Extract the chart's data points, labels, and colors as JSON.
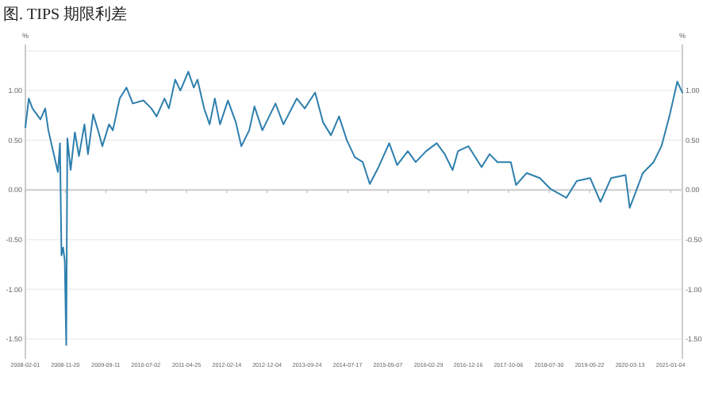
{
  "chart_data": {
    "type": "line",
    "title": "图. TIPS 期限利差",
    "ylabel": "%",
    "y2label": "%",
    "x": [
      "2008-02-01",
      "2008-02-26",
      "2008-03-24",
      "2008-05-21",
      "2008-06-25",
      "2008-07-18",
      "2008-08-22",
      "2008-09-26",
      "2008-10-11",
      "2008-10-22",
      "2008-11-03",
      "2008-11-15",
      "2008-11-26",
      "2008-12-04",
      "2008-12-28",
      "2009-01-28",
      "2009-02-27",
      "2009-04-08",
      "2009-05-04",
      "2009-06-11",
      "2009-07-21",
      "2009-08-17",
      "2009-10-05",
      "2009-11-02",
      "2009-12-22",
      "2010-02-10",
      "2010-03-28",
      "2010-06-14",
      "2010-08-11",
      "2010-09-18",
      "2010-11-15",
      "2010-12-17",
      "2011-02-01",
      "2011-03-11",
      "2011-05-08",
      "2011-06-17",
      "2011-07-14",
      "2011-09-01",
      "2011-10-11",
      "2011-11-18",
      "2011-12-26",
      "2012-02-22",
      "2012-04-20",
      "2012-05-30",
      "2012-07-27",
      "2012-09-03",
      "2012-10-31",
      "2013-02-04",
      "2013-04-03",
      "2013-07-10",
      "2013-09-06",
      "2013-11-21",
      "2014-01-18",
      "2014-03-17",
      "2014-05-15",
      "2014-07-11",
      "2014-09-07",
      "2014-11-04",
      "2014-12-26",
      "2015-02-28",
      "2015-05-17",
      "2015-07-14",
      "2015-09-30",
      "2015-11-27",
      "2016-02-11",
      "2016-04-29",
      "2016-06-26",
      "2016-08-23",
      "2016-10-01",
      "2016-12-17",
      "2017-03-23",
      "2017-05-20",
      "2017-07-17",
      "2017-10-23",
      "2017-11-30",
      "2018-02-16",
      "2018-05-23",
      "2018-08-09",
      "2018-12-03",
      "2019-02-17",
      "2019-05-26",
      "2019-08-10",
      "2019-10-27",
      "2020-02-09",
      "2020-03-11",
      "2020-06-15",
      "2020-09-01",
      "2020-10-29",
      "2020-12-26",
      "2021-02-22",
      "2021-03-31"
    ],
    "series": [
      {
        "color": "#2e7fad",
        "values": [
          0.63,
          0.92,
          0.82,
          0.71,
          0.82,
          0.6,
          0.39,
          0.18,
          0.47,
          -0.66,
          -0.58,
          -0.71,
          -1.56,
          0.52,
          0.2,
          0.58,
          0.34,
          0.66,
          0.36,
          0.76,
          0.58,
          0.44,
          0.66,
          0.6,
          0.92,
          1.03,
          0.87,
          0.9,
          0.82,
          0.74,
          0.92,
          0.82,
          1.11,
          1.0,
          1.19,
          1.03,
          1.11,
          0.82,
          0.66,
          0.92,
          0.66,
          0.9,
          0.68,
          0.44,
          0.6,
          0.84,
          0.6,
          0.87,
          0.66,
          0.92,
          0.82,
          0.98,
          0.68,
          0.55,
          0.74,
          0.5,
          0.33,
          0.28,
          0.06,
          0.23,
          0.47,
          0.25,
          0.39,
          0.28,
          0.39,
          0.47,
          0.36,
          0.2,
          0.39,
          0.44,
          0.23,
          0.36,
          0.28,
          0.28,
          0.05,
          0.17,
          0.12,
          0.01,
          -0.08,
          0.09,
          0.12,
          -0.12,
          0.12,
          0.15,
          -0.18,
          0.17,
          0.28,
          0.44,
          0.74,
          1.09,
          0.98
        ]
      }
    ],
    "xlim": [
      "2008-02-01",
      "2021-03-31"
    ],
    "xticks": [
      "2008-02-01",
      "2008-11-20",
      "2009-09-11",
      "2010-07-02",
      "2011-04-25",
      "2012-02-14",
      "2012-12-04",
      "2013-09-24",
      "2014-07-17",
      "2015-05-07",
      "2016-02-29",
      "2016-12-16",
      "2017-10-06",
      "2018-07-30",
      "2019-05-22",
      "2020-03-13",
      "2021-01-04"
    ],
    "ylim": [
      -1.7,
      1.4
    ],
    "yticks": [
      {
        "value": -1.5,
        "label": "-1.50"
      },
      {
        "value": -1,
        "label": "-1.00"
      },
      {
        "value": -0.5,
        "label": "-0.50"
      },
      {
        "value": 0,
        "label": "0.00"
      },
      {
        "value": 0.5,
        "label": "0.50"
      },
      {
        "value": 1,
        "label": "1.00"
      }
    ],
    "y2lim": [
      -1.7,
      1.4
    ],
    "y2ticks": [
      {
        "value": -1.5,
        "label": "-1.50"
      },
      {
        "value": -1,
        "label": "-1.00"
      },
      {
        "value": -0.5,
        "label": "-0.50"
      },
      {
        "value": 0,
        "label": "0.00"
      },
      {
        "value": 0.5,
        "label": "0.50"
      },
      {
        "value": 1,
        "label": "1.00"
      }
    ],
    "grid": "y"
  }
}
